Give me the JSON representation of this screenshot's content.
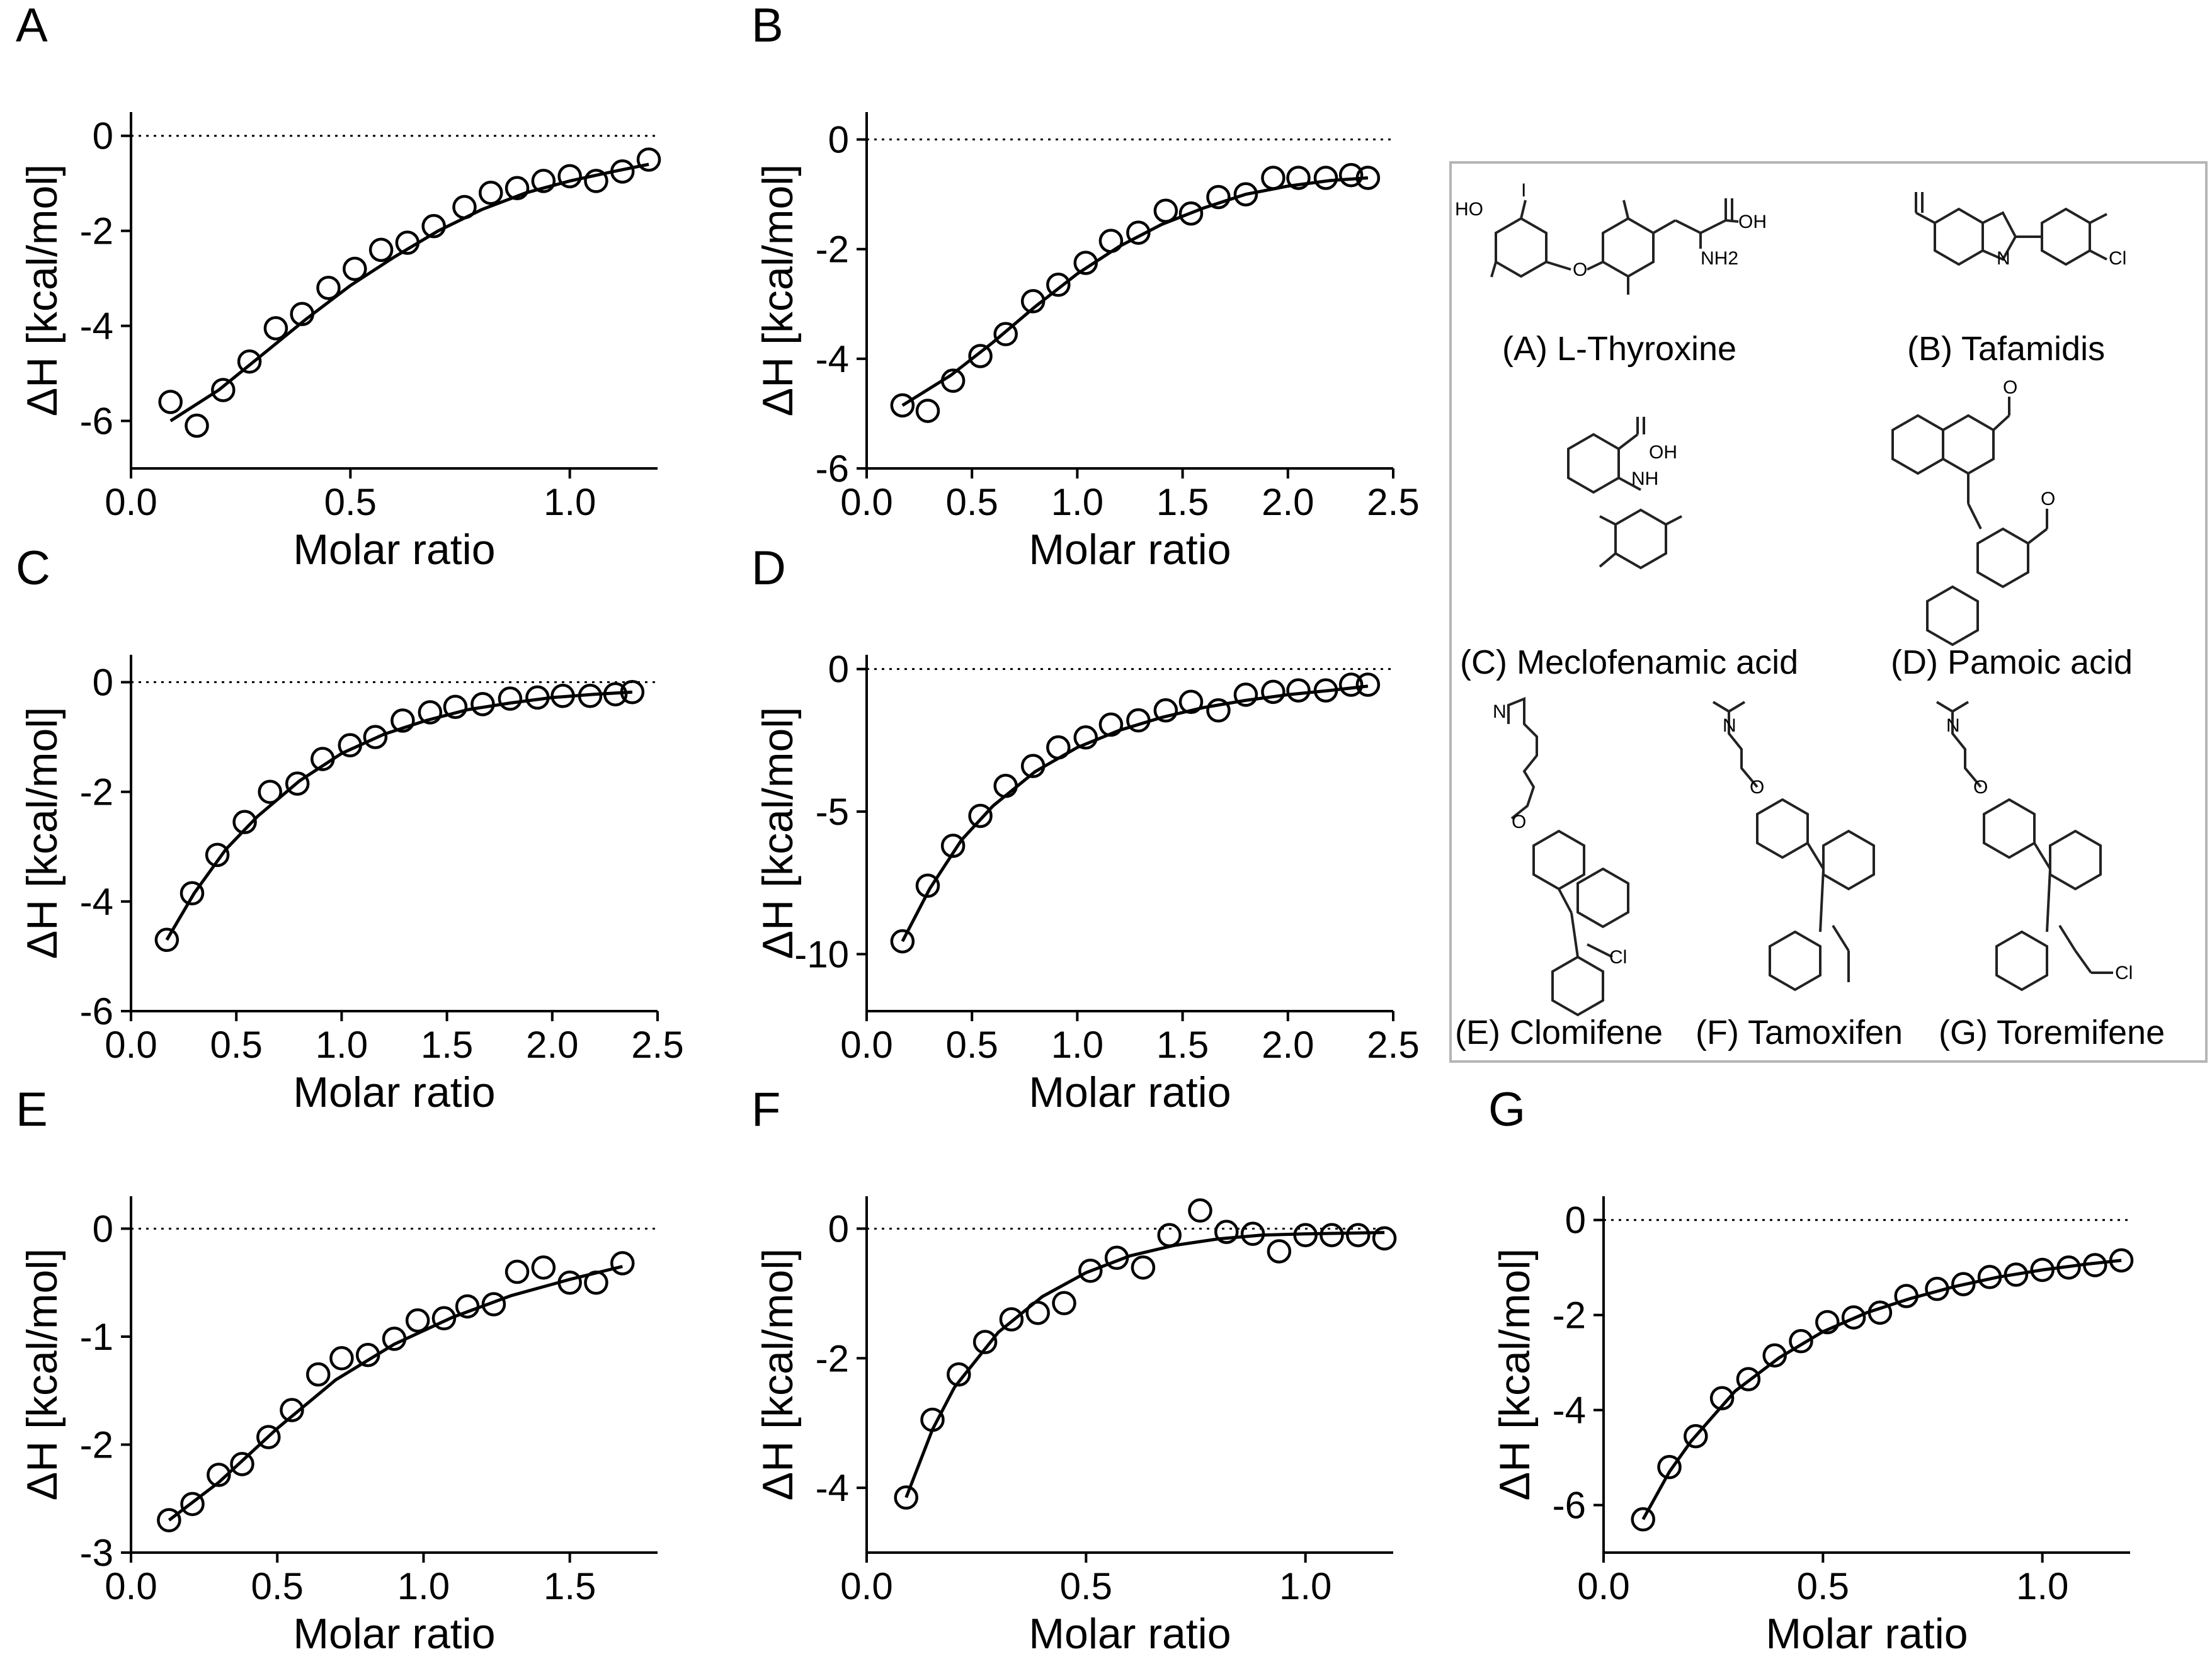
{
  "chart_data": [
    {
      "panel": "A",
      "type": "scatter",
      "xlabel": "Molar ratio",
      "ylabel": "ΔH [kcal/mol]",
      "xlim": [
        0,
        1.2
      ],
      "ylim": [
        -7,
        0.5
      ],
      "xticks": [
        0.0,
        0.5,
        1.0
      ],
      "xtick_labels": [
        "0.0",
        "0.5",
        "1.0"
      ],
      "yticks": [
        0,
        -2,
        -4,
        -6
      ],
      "ytick_labels": [
        "0",
        "-2",
        "-4",
        "-6"
      ],
      "baseline": 0,
      "x": [
        0.09,
        0.15,
        0.21,
        0.27,
        0.33,
        0.39,
        0.45,
        0.51,
        0.57,
        0.63,
        0.69,
        0.76,
        0.82,
        0.88,
        0.94,
        1.0,
        1.06,
        1.12,
        1.18
      ],
      "y": [
        -5.6,
        -6.1,
        -5.35,
        -4.75,
        -4.05,
        -3.75,
        -3.2,
        -2.8,
        -2.4,
        -2.25,
        -1.9,
        -1.5,
        -1.2,
        -1.1,
        -0.95,
        -0.85,
        -0.95,
        -0.75,
        -0.5
      ],
      "fit": {
        "x": [
          0.09,
          0.2,
          0.3,
          0.4,
          0.5,
          0.6,
          0.7,
          0.8,
          0.9,
          1.0,
          1.1,
          1.18
        ],
        "y": [
          -6.0,
          -5.35,
          -4.6,
          -3.85,
          -3.15,
          -2.55,
          -2.0,
          -1.55,
          -1.2,
          -0.95,
          -0.75,
          -0.6
        ]
      }
    },
    {
      "panel": "B",
      "type": "scatter",
      "xlabel": "Molar ratio",
      "ylabel": "ΔH [kcal/mol]",
      "xlim": [
        0,
        2.5
      ],
      "ylim": [
        -6,
        0.5
      ],
      "xticks": [
        0.0,
        0.5,
        1.0,
        1.5,
        2.0,
        2.5
      ],
      "xtick_labels": [
        "0.0",
        "0.5",
        "1.0",
        "1.5",
        "2.0",
        "2.5"
      ],
      "yticks": [
        0,
        -2,
        -4,
        -6
      ],
      "ytick_labels": [
        "0",
        "-2",
        "-4",
        "-6"
      ],
      "baseline": 0,
      "x": [
        0.17,
        0.29,
        0.41,
        0.54,
        0.66,
        0.79,
        0.91,
        1.04,
        1.16,
        1.29,
        1.42,
        1.54,
        1.67,
        1.8,
        1.93,
        2.05,
        2.18,
        2.3,
        2.38
      ],
      "y": [
        -4.85,
        -4.95,
        -4.4,
        -3.95,
        -3.55,
        -2.95,
        -2.65,
        -2.25,
        -1.85,
        -1.7,
        -1.3,
        -1.35,
        -1.05,
        -1.0,
        -0.7,
        -0.7,
        -0.7,
        -0.65,
        -0.7
      ],
      "fit": {
        "x": [
          0.17,
          0.4,
          0.6,
          0.8,
          1.0,
          1.2,
          1.4,
          1.6,
          1.8,
          2.0,
          2.2,
          2.38
        ],
        "y": [
          -4.85,
          -4.3,
          -3.7,
          -3.05,
          -2.45,
          -1.95,
          -1.55,
          -1.25,
          -1.0,
          -0.85,
          -0.75,
          -0.7
        ]
      }
    },
    {
      "panel": "C",
      "type": "scatter",
      "xlabel": "Molar ratio",
      "ylabel": "ΔH [kcal/mol]",
      "xlim": [
        0,
        2.5
      ],
      "ylim": [
        -6,
        0.5
      ],
      "xticks": [
        0.0,
        0.5,
        1.0,
        1.5,
        2.0,
        2.5
      ],
      "xtick_labels": [
        "0.0",
        "0.5",
        "1.0",
        "1.5",
        "2.0",
        "2.5"
      ],
      "yticks": [
        0,
        -2,
        -4,
        -6
      ],
      "ytick_labels": [
        "0",
        "-2",
        "-4",
        "-6"
      ],
      "baseline": 0,
      "x": [
        0.17,
        0.29,
        0.41,
        0.54,
        0.66,
        0.79,
        0.91,
        1.04,
        1.16,
        1.29,
        1.42,
        1.54,
        1.67,
        1.8,
        1.93,
        2.05,
        2.18,
        2.3,
        2.38
      ],
      "y": [
        -4.7,
        -3.85,
        -3.15,
        -2.55,
        -2.0,
        -1.85,
        -1.4,
        -1.15,
        -1.0,
        -0.7,
        -0.55,
        -0.45,
        -0.4,
        -0.3,
        -0.28,
        -0.25,
        -0.25,
        -0.22,
        -0.18
      ],
      "fit": {
        "x": [
          0.17,
          0.3,
          0.45,
          0.6,
          0.8,
          1.0,
          1.2,
          1.4,
          1.6,
          1.8,
          2.0,
          2.2,
          2.38
        ],
        "y": [
          -4.7,
          -3.85,
          -3.05,
          -2.45,
          -1.8,
          -1.3,
          -0.95,
          -0.7,
          -0.5,
          -0.38,
          -0.28,
          -0.22,
          -0.18
        ]
      }
    },
    {
      "panel": "D",
      "type": "scatter",
      "xlabel": "Molar ratio",
      "ylabel": "ΔH [kcal/mol]",
      "xlim": [
        0,
        2.5
      ],
      "ylim": [
        -12,
        0.5
      ],
      "xticks": [
        0.0,
        0.5,
        1.0,
        1.5,
        2.0,
        2.5
      ],
      "xtick_labels": [
        "0.0",
        "0.5",
        "1.0",
        "1.5",
        "2.0",
        "2.5"
      ],
      "yticks": [
        0,
        -5,
        -10
      ],
      "ytick_labels": [
        "0",
        "-5",
        "-10"
      ],
      "baseline": 0,
      "x": [
        0.17,
        0.29,
        0.41,
        0.54,
        0.66,
        0.79,
        0.91,
        1.04,
        1.16,
        1.29,
        1.42,
        1.54,
        1.67,
        1.8,
        1.93,
        2.05,
        2.18,
        2.3,
        2.38
      ],
      "y": [
        -9.55,
        -7.6,
        -6.2,
        -5.15,
        -4.1,
        -3.4,
        -2.75,
        -2.4,
        -1.95,
        -1.8,
        -1.45,
        -1.15,
        -1.45,
        -0.9,
        -0.8,
        -0.75,
        -0.75,
        -0.55,
        -0.55
      ],
      "fit": {
        "x": [
          0.17,
          0.3,
          0.45,
          0.6,
          0.8,
          1.0,
          1.2,
          1.4,
          1.6,
          1.8,
          2.0,
          2.2,
          2.38
        ],
        "y": [
          -9.55,
          -7.7,
          -6.0,
          -4.8,
          -3.6,
          -2.75,
          -2.15,
          -1.7,
          -1.35,
          -1.1,
          -0.9,
          -0.75,
          -0.6
        ]
      }
    },
    {
      "panel": "E",
      "type": "scatter",
      "xlabel": "Molar ratio",
      "ylabel": "ΔH [kcal/mol]",
      "xlim": [
        0,
        1.8
      ],
      "ylim": [
        -3,
        0.3
      ],
      "xticks": [
        0.0,
        0.5,
        1.0,
        1.5
      ],
      "xtick_labels": [
        "0.0",
        "0.5",
        "1.0",
        "1.5"
      ],
      "yticks": [
        0,
        -1,
        -2,
        -3
      ],
      "ytick_labels": [
        "0",
        "-1",
        "-2",
        "-3"
      ],
      "baseline": 0,
      "x": [
        0.13,
        0.21,
        0.3,
        0.38,
        0.47,
        0.55,
        0.64,
        0.72,
        0.81,
        0.9,
        0.98,
        1.07,
        1.15,
        1.24,
        1.32,
        1.41,
        1.5,
        1.59,
        1.68
      ],
      "y": [
        -2.7,
        -2.55,
        -2.28,
        -2.18,
        -1.93,
        -1.68,
        -1.35,
        -1.2,
        -1.17,
        -1.02,
        -0.85,
        -0.83,
        -0.72,
        -0.7,
        -0.4,
        -0.36,
        -0.5,
        -0.5,
        -0.32
      ],
      "fit": {
        "x": [
          0.13,
          0.3,
          0.5,
          0.7,
          0.9,
          1.1,
          1.3,
          1.5,
          1.68
        ],
        "y": [
          -2.7,
          -2.35,
          -1.85,
          -1.4,
          -1.07,
          -0.82,
          -0.62,
          -0.47,
          -0.35
        ]
      }
    },
    {
      "panel": "F",
      "type": "scatter",
      "xlabel": "Molar ratio",
      "ylabel": "ΔH [kcal/mol]",
      "xlim": [
        0,
        1.2
      ],
      "ylim": [
        -5,
        0.5
      ],
      "xticks": [
        0.0,
        0.5,
        1.0
      ],
      "xtick_labels": [
        "0.0",
        "0.5",
        "1.0"
      ],
      "yticks": [
        0,
        -2,
        -4
      ],
      "ytick_labels": [
        "0",
        "-2",
        "-4"
      ],
      "baseline": 0,
      "x": [
        0.09,
        0.15,
        0.21,
        0.27,
        0.33,
        0.39,
        0.45,
        0.51,
        0.57,
        0.63,
        0.69,
        0.76,
        0.82,
        0.88,
        0.94,
        1.0,
        1.06,
        1.12,
        1.18
      ],
      "y": [
        -4.15,
        -2.95,
        -2.25,
        -1.75,
        -1.4,
        -1.3,
        -1.15,
        -0.65,
        -0.45,
        -0.6,
        -0.1,
        0.28,
        -0.05,
        -0.08,
        -0.35,
        -0.1,
        -0.1,
        -0.1,
        -0.15
      ],
      "fit": {
        "x": [
          0.09,
          0.15,
          0.2,
          0.3,
          0.4,
          0.5,
          0.6,
          0.7,
          0.8,
          0.9,
          1.0,
          1.18
        ],
        "y": [
          -4.15,
          -3.1,
          -2.45,
          -1.6,
          -1.05,
          -0.68,
          -0.42,
          -0.26,
          -0.16,
          -0.1,
          -0.08,
          -0.06
        ]
      }
    },
    {
      "panel": "G",
      "type": "scatter",
      "xlabel": "Molar ratio",
      "ylabel": "ΔH [kcal/mol]",
      "xlim": [
        0,
        1.2
      ],
      "ylim": [
        -7,
        0.5
      ],
      "xticks": [
        0.0,
        0.5,
        1.0
      ],
      "xtick_labels": [
        "0.0",
        "0.5",
        "1.0"
      ],
      "yticks": [
        0,
        -2,
        -4,
        -6
      ],
      "ytick_labels": [
        "0",
        "-2",
        "-4",
        "-6"
      ],
      "baseline": 0,
      "x": [
        0.09,
        0.15,
        0.21,
        0.27,
        0.33,
        0.39,
        0.45,
        0.51,
        0.57,
        0.63,
        0.69,
        0.76,
        0.82,
        0.88,
        0.94,
        1.0,
        1.06,
        1.12,
        1.18
      ],
      "y": [
        -6.3,
        -5.2,
        -4.55,
        -3.75,
        -3.35,
        -2.85,
        -2.55,
        -2.15,
        -2.05,
        -1.95,
        -1.6,
        -1.45,
        -1.35,
        -1.2,
        -1.15,
        -1.05,
        -1.0,
        -0.95,
        -0.85
      ],
      "fit": {
        "x": [
          0.09,
          0.15,
          0.2,
          0.3,
          0.4,
          0.5,
          0.6,
          0.7,
          0.8,
          0.9,
          1.0,
          1.1,
          1.18
        ],
        "y": [
          -6.3,
          -5.3,
          -4.65,
          -3.6,
          -2.9,
          -2.35,
          -1.95,
          -1.65,
          -1.4,
          -1.2,
          -1.05,
          -0.93,
          -0.85
        ]
      }
    }
  ],
  "structures": {
    "atoms": [
      "HO",
      "I",
      "O",
      "OH",
      "NH2",
      "N",
      "Cl",
      "NH",
      "OH",
      "O",
      "O",
      "N",
      "N",
      "O",
      "O",
      "Cl",
      "Cl",
      "N",
      "O"
    ],
    "labels": {
      "A": "(A) L-Thyroxine",
      "B": "(B) Tafamidis",
      "C": "(C) Meclofenamic acid",
      "D": "(D) Pamoic acid",
      "E": "(E) Clomifene",
      "F": "(F) Tamoxifen",
      "G": "(G) Toremifene"
    }
  }
}
